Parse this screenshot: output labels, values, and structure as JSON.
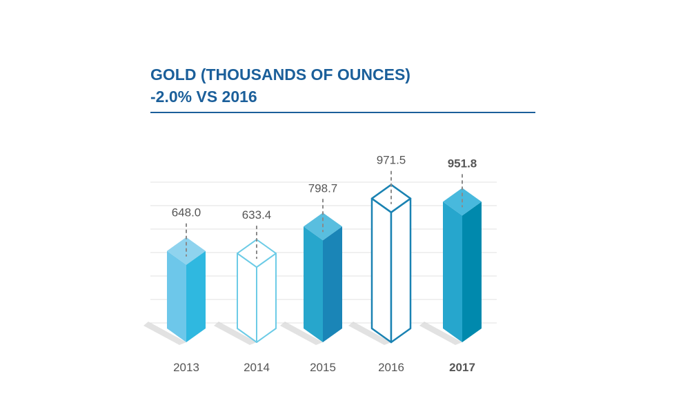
{
  "chart_data": {
    "type": "bar",
    "title": "GOLD (THOUSANDS OF OUNCES)",
    "subtitle": "-2.0% VS 2016",
    "categories": [
      "2013",
      "2014",
      "2015",
      "2016",
      "2017"
    ],
    "values": [
      648.0,
      633.4,
      798.7,
      971.5,
      951.8
    ],
    "value_labels": [
      "648.0",
      "633.4",
      "798.7",
      "971.5",
      "951.8"
    ],
    "highlight": "2017",
    "styles": [
      "solid-light",
      "outline-light",
      "solid-medium",
      "outline-dark",
      "solid-dark"
    ],
    "grid": true,
    "colors": {
      "title": "#1b5f9a",
      "grid": "#e2e2e2",
      "label": "#555555",
      "leader": "#8a8a8a",
      "shadow": "#d6d6d6",
      "solid_light": {
        "top": "#8fd3ee",
        "left": "#6dc7ea",
        "right": "#2fb8e0"
      },
      "outline_light": "#6ccbe6",
      "solid_medium": {
        "top": "#59bedf",
        "left": "#27a6cc",
        "right": "#1a85b7"
      },
      "outline_dark": "#1a82b2",
      "solid_dark": {
        "top": "#48b9dd",
        "left": "#26a6cd",
        "right": "#0089ad"
      }
    }
  }
}
